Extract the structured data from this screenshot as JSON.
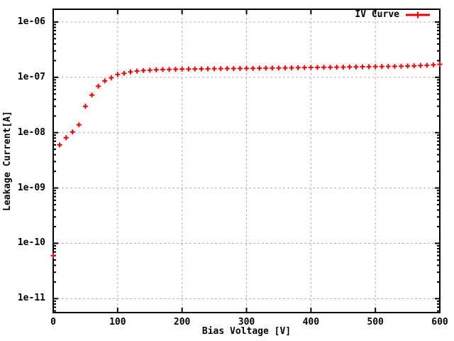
{
  "chart_data": {
    "type": "scatter",
    "title": "",
    "xlabel": "Bias Voltage [V]",
    "ylabel": "Leakage Current[A]",
    "legend_position": "top-right-inside",
    "grid": true,
    "log_y": true,
    "marker": "plus",
    "xlim": [
      0,
      600
    ],
    "ylim": [
      5.6e-12,
      1.7e-06
    ],
    "x_ticks": [
      {
        "value": 0,
        "label": "0"
      },
      {
        "value": 100,
        "label": "100"
      },
      {
        "value": 200,
        "label": "200"
      },
      {
        "value": 300,
        "label": "300"
      },
      {
        "value": 400,
        "label": "400"
      },
      {
        "value": 500,
        "label": "500"
      },
      {
        "value": 600,
        "label": "600"
      }
    ],
    "y_ticks": [
      {
        "value": 1e-11,
        "label": "1e-11"
      },
      {
        "value": 1e-10,
        "label": "1e-10"
      },
      {
        "value": 1e-09,
        "label": "1e-09"
      },
      {
        "value": 1e-08,
        "label": "1e-08"
      },
      {
        "value": 1e-07,
        "label": "1e-07"
      },
      {
        "value": 1e-06,
        "label": "1e-06"
      }
    ],
    "colors": {
      "series": "#ee0000",
      "grid": "#b0b0b0",
      "axis": "#000000",
      "background": "#ffffff"
    },
    "series": [
      {
        "name": "IV Curve",
        "color": "#ee0000",
        "x": [
          0,
          10,
          20,
          30,
          40,
          50,
          60,
          70,
          80,
          90,
          100,
          110,
          120,
          130,
          140,
          150,
          160,
          170,
          180,
          190,
          200,
          210,
          220,
          230,
          240,
          250,
          260,
          270,
          280,
          290,
          300,
          310,
          320,
          330,
          340,
          350,
          360,
          370,
          380,
          390,
          400,
          410,
          420,
          430,
          440,
          450,
          460,
          470,
          480,
          490,
          500,
          510,
          520,
          530,
          540,
          550,
          560,
          570,
          580,
          590,
          600
        ],
        "y": [
          6e-11,
          6e-09,
          8.1e-09,
          1.03e-08,
          1.39e-08,
          3e-08,
          4.8e-08,
          6.9e-08,
          8.6e-08,
          9.8e-08,
          1.13e-07,
          1.18e-07,
          1.25e-07,
          1.3e-07,
          1.33e-07,
          1.35e-07,
          1.37e-07,
          1.38e-07,
          1.39e-07,
          1.4e-07,
          1.405e-07,
          1.41e-07,
          1.415e-07,
          1.42e-07,
          1.425e-07,
          1.43e-07,
          1.435e-07,
          1.44e-07,
          1.44e-07,
          1.445e-07,
          1.45e-07,
          1.455e-07,
          1.46e-07,
          1.465e-07,
          1.47e-07,
          1.475e-07,
          1.48e-07,
          1.485e-07,
          1.49e-07,
          1.5e-07,
          1.505e-07,
          1.51e-07,
          1.515e-07,
          1.52e-07,
          1.525e-07,
          1.53e-07,
          1.535e-07,
          1.54e-07,
          1.55e-07,
          1.555e-07,
          1.56e-07,
          1.57e-07,
          1.575e-07,
          1.58e-07,
          1.59e-07,
          1.6e-07,
          1.61e-07,
          1.63e-07,
          1.65e-07,
          1.68e-07,
          1.72e-07
        ]
      }
    ]
  }
}
